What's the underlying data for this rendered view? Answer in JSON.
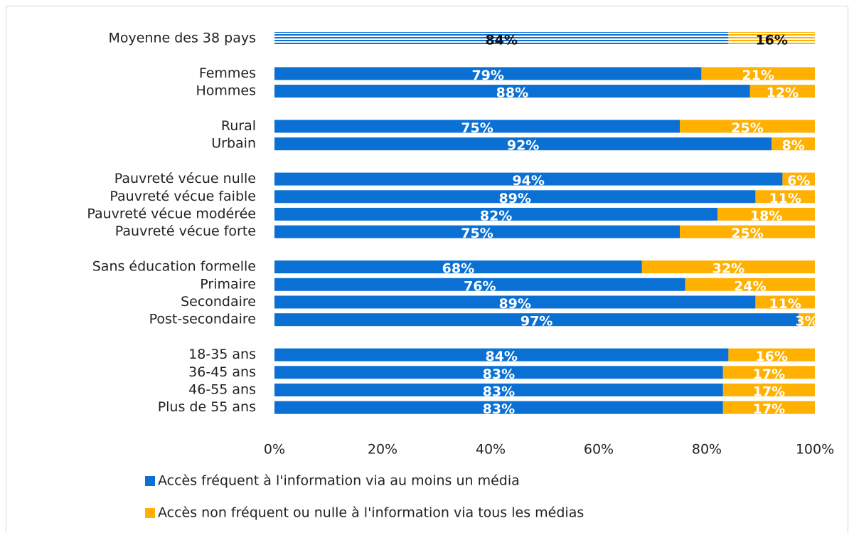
{
  "chart_data": {
    "type": "stacked_barh",
    "categories": [
      "Moyenne des 38 pays",
      null,
      "Femmes",
      "Hommes",
      null,
      "Rural",
      "Urbain",
      null,
      "Pauvreté vécue nulle",
      "Pauvreté vécue faible",
      "Pauvreté vécue modérée",
      "Pauvreté vécue forte",
      null,
      "Sans éducation formelle",
      "Primaire",
      "Secondaire",
      "Post-secondaire",
      null,
      "18-35 ans",
      "36-45 ans",
      "46-55 ans",
      "Plus de 55 ans"
    ],
    "series": [
      {
        "name": "Accès fréquent à l'information via au moins un média",
        "color": "#0a70d4",
        "values": [
          84,
          null,
          79,
          88,
          null,
          75,
          92,
          null,
          94,
          89,
          82,
          75,
          null,
          68,
          76,
          89,
          97,
          null,
          84,
          83,
          83,
          83
        ],
        "value_labels": [
          "84%",
          null,
          "79%",
          "88%",
          null,
          "75%",
          "92%",
          null,
          "94%",
          "89%",
          "82%",
          "75%",
          null,
          "68%",
          "76%",
          "89%",
          "97%",
          null,
          "84%",
          "83%",
          "83%",
          "83%"
        ]
      },
      {
        "name": "Accès non fréquent ou nulle à l'information via tous les médias",
        "color": "#ffb000",
        "values": [
          16,
          null,
          21,
          12,
          null,
          25,
          8,
          null,
          6,
          11,
          18,
          25,
          null,
          32,
          24,
          11,
          3,
          null,
          16,
          17,
          17,
          17
        ],
        "value_labels": [
          "16%",
          null,
          "21%",
          "12%",
          null,
          "25%",
          "8%",
          null,
          "6%",
          "11%",
          "18%",
          "25%",
          null,
          "32%",
          "24%",
          "11%",
          "3%",
          null,
          "16%",
          "17%",
          "17%",
          "17%"
        ]
      }
    ],
    "xlim": [
      0,
      100
    ],
    "xticks": [
      {
        "value": 0,
        "label": "0%"
      },
      {
        "value": 20,
        "label": "20%"
      },
      {
        "value": 40,
        "label": "40%"
      },
      {
        "value": 60,
        "label": "60%"
      },
      {
        "value": 80,
        "label": "80%"
      },
      {
        "value": 100,
        "label": "100%"
      }
    ],
    "legend": "bottom"
  }
}
